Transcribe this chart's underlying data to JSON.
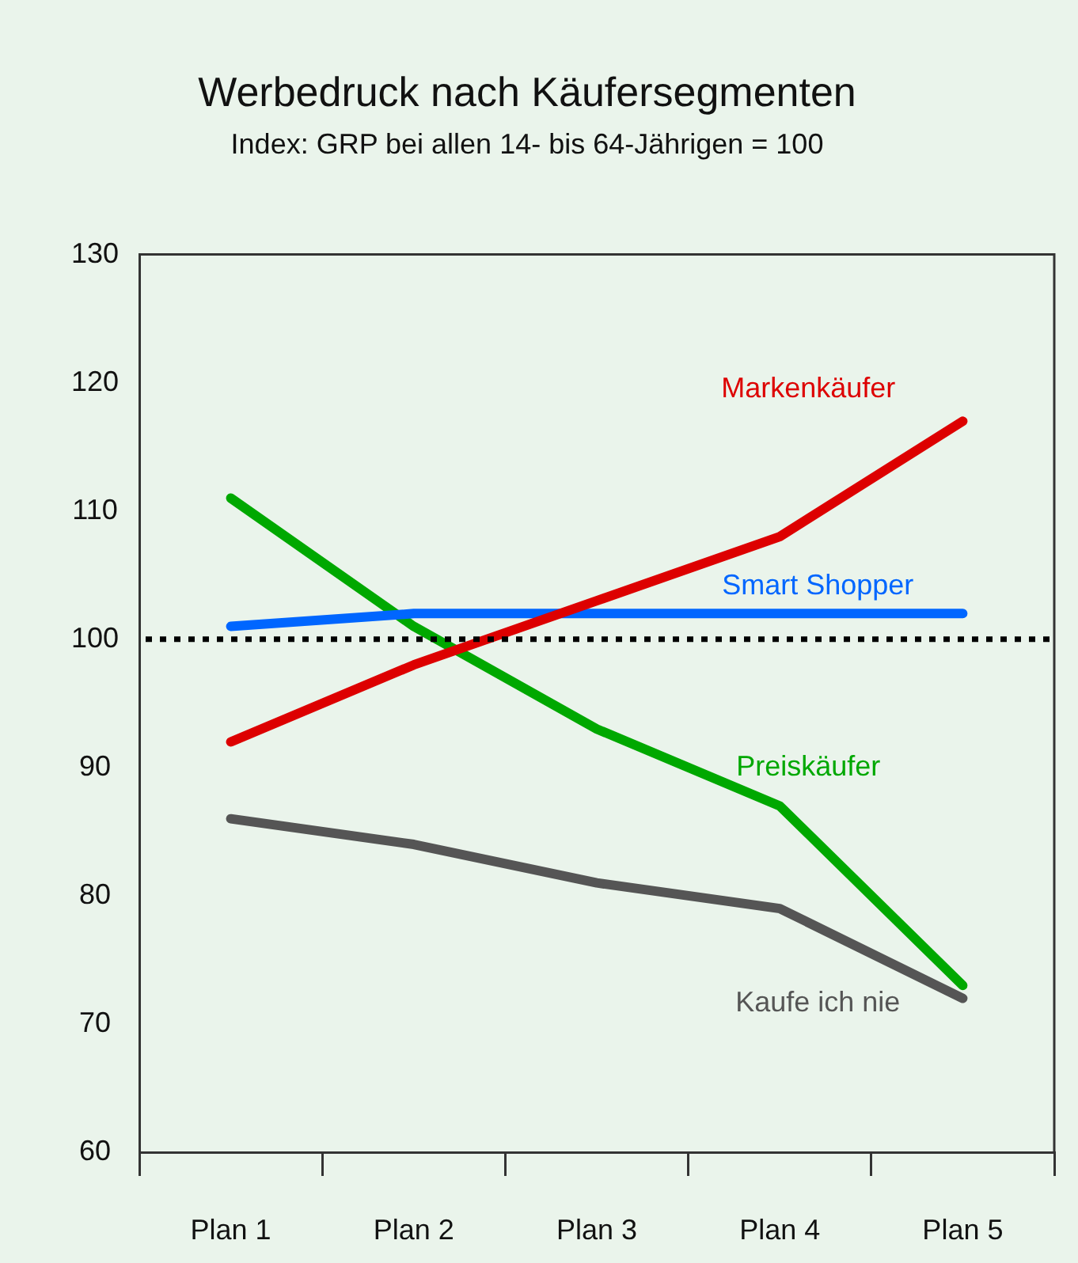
{
  "chart_data": {
    "type": "line",
    "title": "Werbedruck nach Käufersegmenten",
    "subtitle": "Index: GRP bei allen 14- bis 64-Jährigen = 100",
    "categories": [
      "Plan 1",
      "Plan 2",
      "Plan 3",
      "Plan 4",
      "Plan 5"
    ],
    "series": [
      {
        "name": "Markenkäufer",
        "color": "#dd0000",
        "values": [
          92,
          98,
          103,
          108,
          117
        ]
      },
      {
        "name": "Smart Shopper",
        "color": "#0066ff",
        "values": [
          101,
          102,
          102,
          102,
          102
        ]
      },
      {
        "name": "Preiskäufer",
        "color": "#00a800",
        "values": [
          111,
          101,
          93,
          87,
          73
        ]
      },
      {
        "name": "Kaufe ich nie",
        "color": "#555555",
        "values": [
          86,
          84,
          81,
          79,
          72
        ]
      }
    ],
    "ylim": [
      60,
      130
    ],
    "yticks": [
      60,
      70,
      80,
      90,
      100,
      110,
      120,
      130
    ],
    "grid": false,
    "legend": false,
    "marker": "none",
    "line_style": "solid",
    "ref_lines": [
      {
        "axis": "y",
        "value": 100,
        "color": "#000000",
        "line_style": "dotted"
      }
    ]
  }
}
